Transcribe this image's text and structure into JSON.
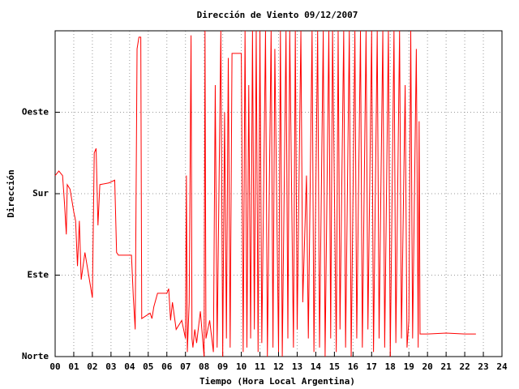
{
  "chart_data": {
    "type": "line",
    "title": "Dirección de Viento 09/12/2007",
    "x_label": "Tiempo (Hora Local Argentina)",
    "y_label": "Dirección",
    "xlim": [
      0,
      24
    ],
    "xticks": [
      {
        "value": 0,
        "label": "00"
      },
      {
        "value": 1,
        "label": "01"
      },
      {
        "value": 2,
        "label": "02"
      },
      {
        "value": 3,
        "label": "03"
      },
      {
        "value": 4,
        "label": "04"
      },
      {
        "value": 5,
        "label": "05"
      },
      {
        "value": 6,
        "label": "06"
      },
      {
        "value": 7,
        "label": "07"
      },
      {
        "value": 8,
        "label": "08"
      },
      {
        "value": 9,
        "label": "09"
      },
      {
        "value": 10,
        "label": "10"
      },
      {
        "value": 11,
        "label": "11"
      },
      {
        "value": 12,
        "label": "12"
      },
      {
        "value": 13,
        "label": "13"
      },
      {
        "value": 14,
        "label": "14"
      },
      {
        "value": 15,
        "label": "15"
      },
      {
        "value": 16,
        "label": "16"
      },
      {
        "value": 17,
        "label": "17"
      },
      {
        "value": 18,
        "label": "18"
      },
      {
        "value": 19,
        "label": "19"
      },
      {
        "value": 20,
        "label": "20"
      },
      {
        "value": 21,
        "label": "21"
      },
      {
        "value": 22,
        "label": "22"
      },
      {
        "value": 23,
        "label": "23"
      },
      {
        "value": 24,
        "label": "24"
      }
    ],
    "ylim": [
      0,
      360
    ],
    "yticks": [
      {
        "value": 0,
        "label": "Norte"
      },
      {
        "value": 90,
        "label": "Este"
      },
      {
        "value": 180,
        "label": "Sur"
      },
      {
        "value": 270,
        "label": "Oeste"
      }
    ],
    "grid": true,
    "color": "#ff0000",
    "x": [
      0.0,
      0.2,
      0.4,
      0.5,
      0.6,
      0.65,
      0.8,
      1.0,
      1.1,
      1.2,
      1.3,
      1.4,
      1.6,
      1.8,
      2.0,
      2.1,
      2.2,
      2.3,
      2.4,
      2.9,
      3.2,
      3.3,
      3.4,
      4.1,
      4.2,
      4.3,
      4.4,
      4.5,
      4.6,
      4.65,
      5.1,
      5.2,
      5.3,
      5.5,
      6.0,
      6.1,
      6.2,
      6.3,
      6.5,
      6.8,
      7.0,
      7.05,
      7.1,
      7.2,
      7.3,
      7.35,
      7.4,
      7.5,
      7.6,
      7.8,
      8.0,
      8.05,
      8.1,
      8.3,
      8.5,
      8.6,
      8.7,
      8.9,
      9.0,
      9.1,
      9.2,
      9.3,
      9.4,
      9.5,
      9.6,
      10.0,
      10.1,
      10.2,
      10.3,
      10.4,
      10.5,
      10.6,
      10.7,
      10.8,
      10.9,
      11.0,
      11.1,
      11.3,
      11.4,
      11.6,
      11.7,
      11.8,
      12.0,
      12.1,
      12.2,
      12.4,
      12.5,
      12.6,
      12.8,
      12.9,
      13.0,
      13.2,
      13.3,
      13.5,
      13.6,
      13.8,
      13.9,
      14.1,
      14.2,
      14.4,
      14.5,
      14.7,
      14.8,
      14.9,
      15.1,
      15.2,
      15.3,
      15.5,
      15.6,
      15.8,
      15.9,
      16.1,
      16.2,
      16.4,
      16.5,
      16.7,
      16.8,
      17.0,
      17.1,
      17.3,
      17.4,
      17.6,
      17.7,
      17.9,
      18.0,
      18.2,
      18.3,
      18.5,
      18.6,
      18.8,
      18.9,
      19.0,
      19.1,
      19.2,
      19.4,
      19.5,
      19.55,
      19.6,
      20.0,
      21.0,
      22.0,
      22.6
    ],
    "values": [
      200,
      205,
      200,
      170,
      135,
      190,
      185,
      160,
      150,
      100,
      150,
      85,
      115,
      90,
      65,
      225,
      230,
      145,
      190,
      192,
      195,
      115,
      112,
      112,
      65,
      30,
      340,
      353,
      353,
      42,
      48,
      42,
      55,
      70,
      70,
      75,
      40,
      60,
      30,
      40,
      20,
      200,
      5,
      60,
      355,
      20,
      10,
      30,
      15,
      50,
      0,
      360,
      20,
      40,
      5,
      300,
      10,
      360,
      0,
      270,
      20,
      330,
      10,
      335,
      335,
      335,
      5,
      360,
      10,
      300,
      20,
      360,
      30,
      360,
      5,
      360,
      15,
      360,
      0,
      360,
      10,
      340,
      5,
      360,
      0,
      360,
      20,
      360,
      10,
      360,
      30,
      360,
      60,
      200,
      20,
      360,
      5,
      360,
      10,
      360,
      0,
      360,
      20,
      360,
      5,
      360,
      30,
      360,
      10,
      360,
      0,
      360,
      20,
      360,
      10,
      360,
      30,
      360,
      5,
      360,
      20,
      360,
      10,
      360,
      0,
      360,
      15,
      360,
      20,
      300,
      10,
      40,
      360,
      20,
      340,
      10,
      260,
      25,
      25,
      26,
      25,
      25
    ]
  }
}
